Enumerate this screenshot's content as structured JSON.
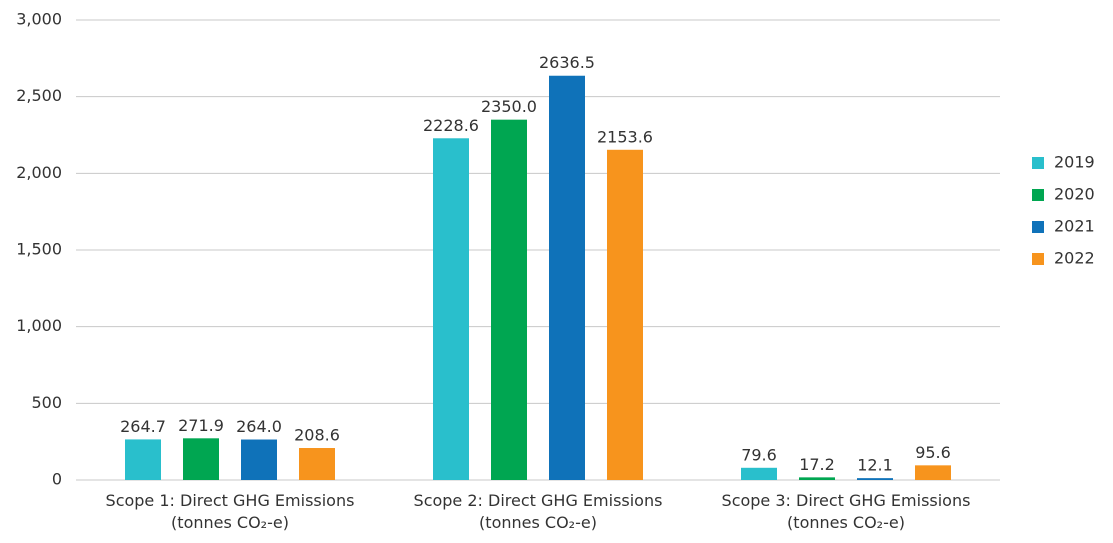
{
  "chart_data": {
    "type": "bar",
    "categories": [
      "Scope 1: Direct GHG Emissions\n(tonnes CO₂-e)",
      "Scope 2: Direct GHG Emissions\n(tonnes CO₂-e)",
      "Scope 3: Direct GHG Emissions\n(tonnes CO₂-e)"
    ],
    "series": [
      {
        "name": "2019",
        "color": "#29bfcc",
        "values": [
          264.7,
          2228.6,
          79.6
        ],
        "value_labels": [
          "264.7",
          "2228.6",
          "79.6"
        ]
      },
      {
        "name": "2020",
        "color": "#00a651",
        "values": [
          271.9,
          2350.0,
          17.2
        ],
        "value_labels": [
          "271.9",
          "2350.0",
          "17.2"
        ]
      },
      {
        "name": "2021",
        "color": "#0f72b9",
        "values": [
          264.0,
          2636.5,
          12.1
        ],
        "value_labels": [
          "264.0",
          "2636.5",
          "12.1"
        ]
      },
      {
        "name": "2022",
        "color": "#f7941d",
        "values": [
          208.6,
          2153.6,
          95.6
        ],
        "value_labels": [
          "208.6",
          "2153.6",
          "95.6"
        ]
      }
    ],
    "ylim": [
      0,
      3000
    ],
    "yticks": [
      0,
      500,
      {
        "value": 1000,
        "label": "1,000"
      },
      {
        "value": 1500,
        "label": "1,500"
      },
      {
        "value": 2000,
        "label": "2,000"
      },
      {
        "value": 2500,
        "label": "2,500"
      },
      {
        "value": 3000,
        "label": "3,000"
      }
    ],
    "grid": true,
    "legend": "right"
  }
}
